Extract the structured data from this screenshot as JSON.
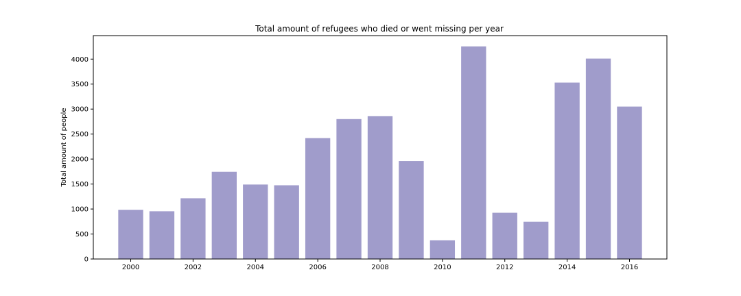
{
  "chart_data": {
    "type": "bar",
    "title": "Total amount of refugees who died or went missing per year",
    "xlabel": "",
    "ylabel": "Total amount of people",
    "categories": [
      2000,
      2001,
      2002,
      2003,
      2004,
      2005,
      2006,
      2007,
      2008,
      2009,
      2010,
      2011,
      2012,
      2013,
      2014,
      2015,
      2016
    ],
    "values": [
      985,
      955,
      1215,
      1745,
      1490,
      1475,
      2420,
      2800,
      2860,
      1960,
      375,
      4255,
      925,
      745,
      3530,
      4010,
      3050
    ],
    "xticks": [
      2000,
      2002,
      2004,
      2006,
      2008,
      2010,
      2012,
      2014,
      2016
    ],
    "yticks": [
      0,
      500,
      1000,
      1500,
      2000,
      2500,
      3000,
      3500,
      4000
    ],
    "xlim": [
      1998.8,
      2017.2
    ],
    "ylim": [
      0,
      4470
    ],
    "bar_color": "#a09ccb",
    "grid": false
  }
}
